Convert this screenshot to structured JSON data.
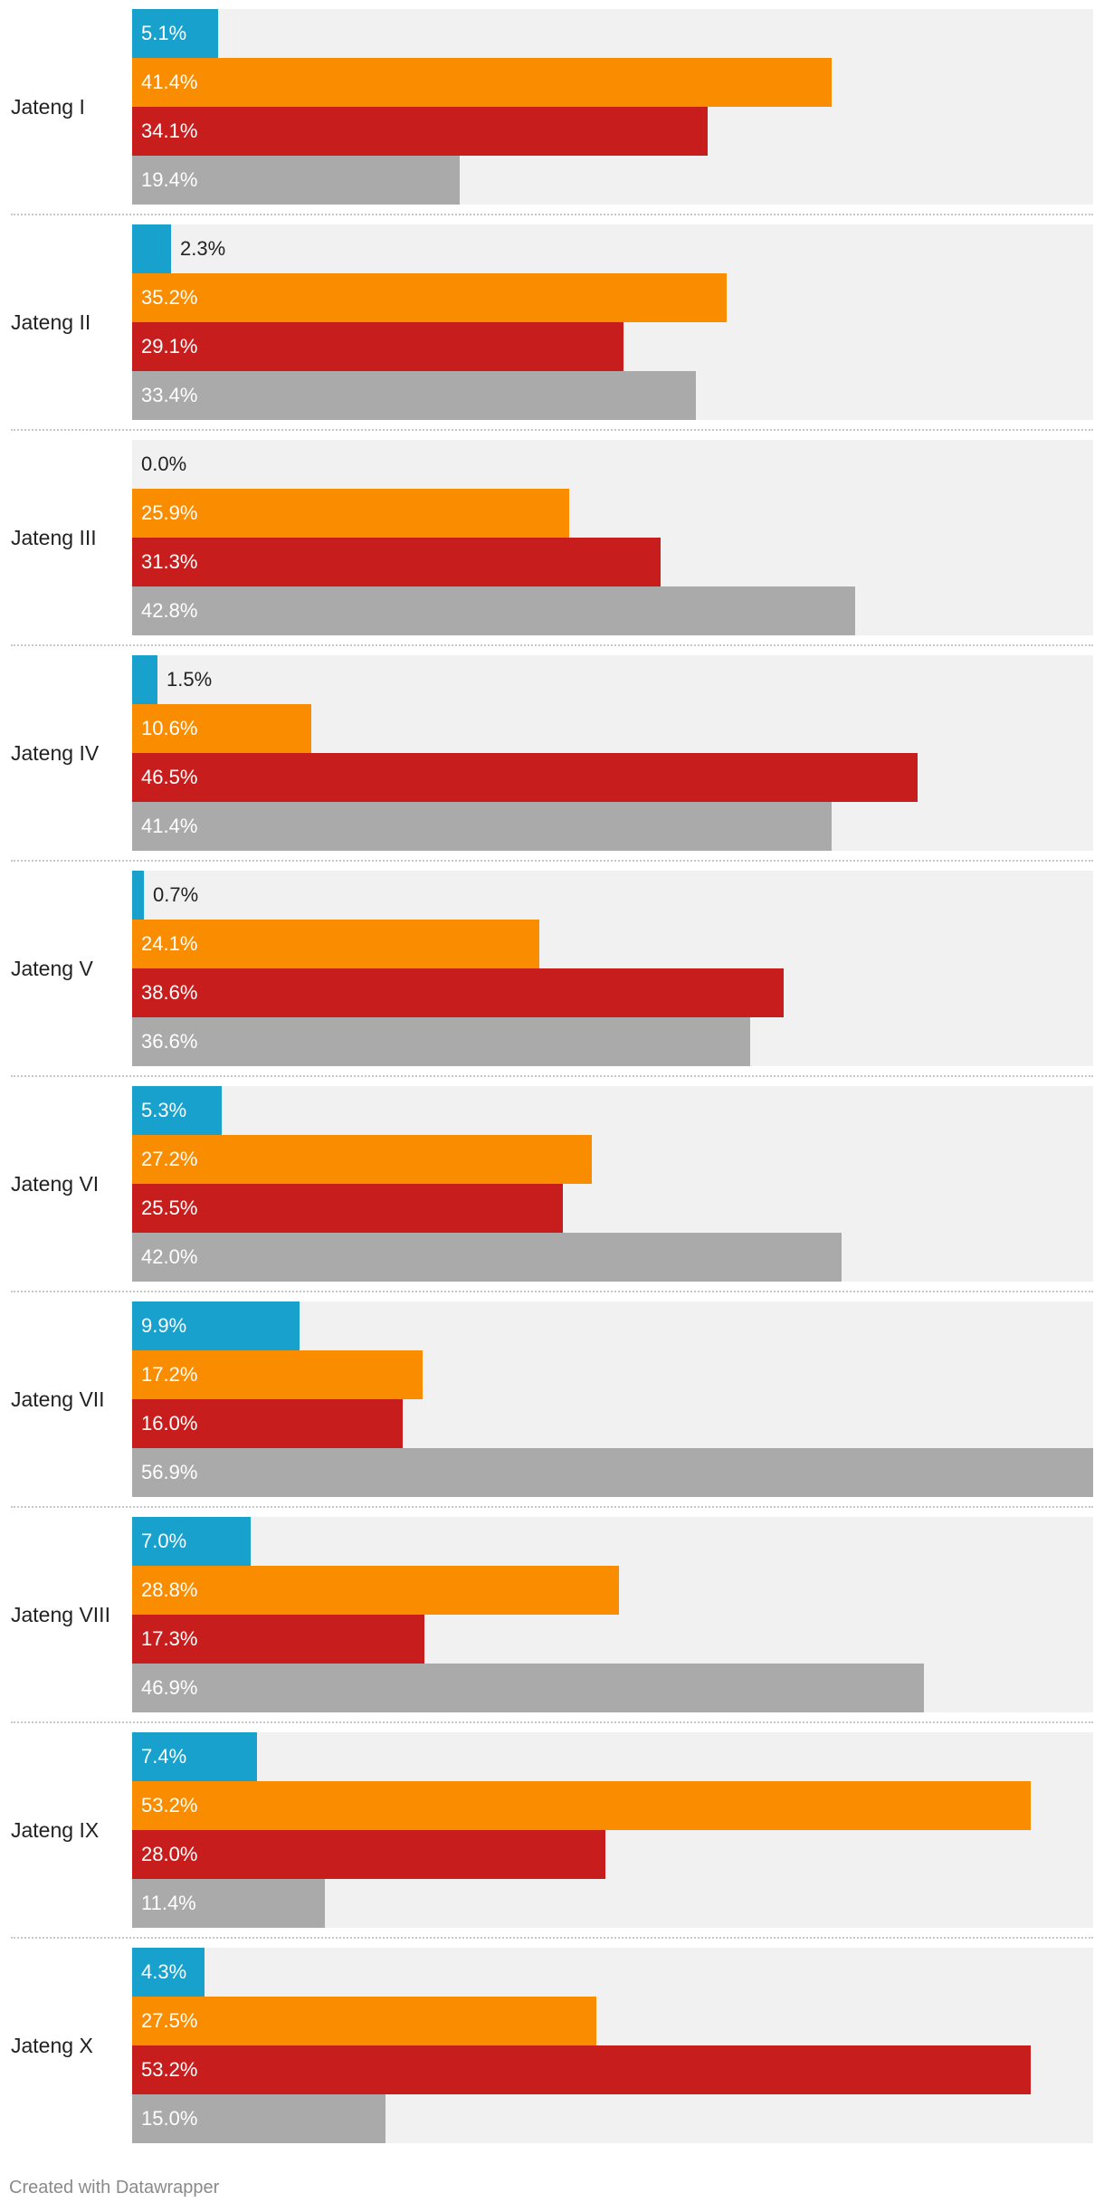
{
  "chart_data": {
    "type": "bar",
    "orientation": "horizontal",
    "grouped": true,
    "categories": [
      "Jateng I",
      "Jateng II",
      "Jateng III",
      "Jateng IV",
      "Jateng V",
      "Jateng VI",
      "Jateng VII",
      "Jateng VIII",
      "Jateng IX",
      "Jateng X"
    ],
    "series": [
      {
        "color": "#18a1cd",
        "values": [
          5.1,
          2.3,
          0.0,
          1.5,
          0.7,
          5.3,
          9.9,
          7.0,
          7.4,
          4.3
        ]
      },
      {
        "color": "#fa8c00",
        "values": [
          41.4,
          35.2,
          25.9,
          10.6,
          24.1,
          27.2,
          17.2,
          28.8,
          53.2,
          27.5
        ]
      },
      {
        "color": "#c71e1d",
        "values": [
          34.1,
          29.1,
          31.3,
          46.5,
          38.6,
          25.5,
          16.0,
          17.3,
          28.0,
          53.2
        ]
      },
      {
        "color": "#aaaaaa",
        "values": [
          19.4,
          33.4,
          42.8,
          41.4,
          36.6,
          42.0,
          56.9,
          46.9,
          11.4,
          15.0
        ]
      }
    ],
    "value_suffix": "%",
    "xlim": [
      0,
      56.9
    ],
    "grid": false
  },
  "footer": {
    "credit": "Created with Datawrapper"
  }
}
